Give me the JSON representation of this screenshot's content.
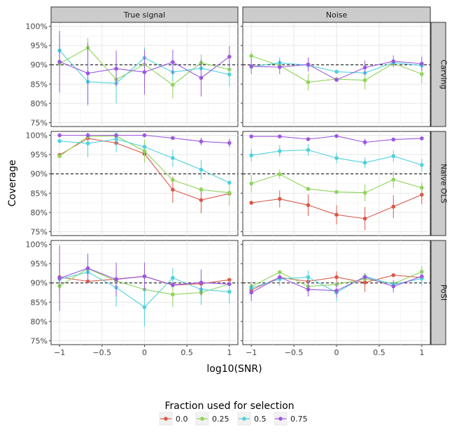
{
  "chart_data": {
    "type": "line",
    "xlabel": "log10(SNR)",
    "ylabel": "Coverage",
    "x": [
      -1,
      -0.667,
      -0.333,
      0,
      0.333,
      0.667,
      1
    ],
    "x_ticks": [
      -1,
      -0.5,
      0,
      0.5,
      1
    ],
    "x_tick_labels": [
      "−1",
      "−0.5",
      "0",
      "0.5",
      "1"
    ],
    "xlim": [
      -1.1,
      1.1
    ],
    "ylim": [
      0.74,
      1.01
    ],
    "y_ticks": [
      0.75,
      0.8,
      0.85,
      0.9,
      0.95,
      1.0
    ],
    "y_tick_labels": [
      "75%",
      "80%",
      "85%",
      "90%",
      "95%",
      "100%"
    ],
    "reference_line": 0.9,
    "grid": true,
    "columns": [
      "True signal",
      "Noise"
    ],
    "rows": [
      "Carving",
      "Naive OLS",
      "PoSI"
    ],
    "legend": {
      "title": "Fraction used for selection",
      "position": "bottom",
      "entries": [
        "0.0",
        "0.25",
        "0.5",
        "0.75"
      ]
    },
    "colors": {
      "0.0": "#d9594c",
      "0.25": "#8fd45a",
      "0.5": "#4fd1dc",
      "0.75": "#9b58e0"
    },
    "panels": [
      {
        "row": "Carving",
        "col": "True signal",
        "series": [
          {
            "name": "0.25",
            "y": [
              0.903,
              0.944,
              0.862,
              0.901,
              0.848,
              0.905,
              0.888
            ],
            "err": [
              0.0,
              0.026,
              0.0,
              0.0,
              0.035,
              0.022,
              0.0
            ]
          },
          {
            "name": "0.5",
            "y": [
              0.937,
              0.856,
              0.852,
              0.918,
              0.881,
              0.891,
              0.875
            ],
            "err": [
              0.036,
              0.062,
              0.052,
              0.027,
              0.022,
              0.021,
              0.031
            ]
          },
          {
            "name": "0.75",
            "y": [
              0.908,
              0.878,
              0.89,
              0.881,
              0.907,
              0.866,
              0.921
            ],
            "err": [
              0.08,
              0.08,
              0.047,
              0.058,
              0.032,
              0.048,
              0.027
            ]
          }
        ]
      },
      {
        "row": "Carving",
        "col": "Noise",
        "series": [
          {
            "name": "0.25",
            "y": [
              0.923,
              0.898,
              0.855,
              0.863,
              0.86,
              0.904,
              0.876
            ],
            "err": [
              0.01,
              0.0,
              0.022,
              0.0,
              0.024,
              0.0,
              0.024
            ]
          },
          {
            "name": "0.5",
            "y": [
              0.895,
              0.905,
              0.899,
              0.882,
              0.879,
              0.906,
              0.898
            ],
            "err": [
              0.0,
              0.015,
              0.0,
              0.0,
              0.0,
              0.0,
              0.0
            ]
          },
          {
            "name": "0.75",
            "y": [
              0.896,
              0.894,
              0.901,
              0.861,
              0.893,
              0.909,
              0.903
            ],
            "err": [
              0.02,
              0.018,
              0.018,
              0.0,
              0.018,
              0.015,
              0.018
            ]
          }
        ]
      },
      {
        "row": "Naive OLS",
        "col": "True signal",
        "series": [
          {
            "name": "0.0",
            "y": [
              0.949,
              0.992,
              0.98,
              0.952,
              0.859,
              0.832,
              0.849
            ],
            "err": [
              0.0,
              0.0,
              0.0,
              0.0,
              0.034,
              0.034,
              0.0
            ]
          },
          {
            "name": "0.25",
            "y": [
              0.946,
              0.997,
              0.998,
              0.959,
              0.884,
              0.859,
              0.851
            ],
            "err": [
              0.0,
              0.0,
              0.0,
              0.03,
              0.0,
              0.0,
              0.033
            ]
          },
          {
            "name": "0.5",
            "y": [
              0.985,
              0.979,
              0.99,
              0.97,
              0.941,
              0.911,
              0.877
            ],
            "err": [
              0.0,
              0.036,
              0.034,
              0.0,
              0.022,
              0.025,
              0.0
            ]
          },
          {
            "name": "0.75",
            "y": [
              1.0,
              1.0,
              1.0,
              1.0,
              0.993,
              0.984,
              0.98
            ],
            "err": [
              0.0,
              0.0,
              0.0,
              0.0,
              0.0,
              0.01,
              0.011
            ]
          }
        ]
      },
      {
        "row": "Naive OLS",
        "col": "Noise",
        "series": [
          {
            "name": "0.0",
            "y": [
              0.825,
              0.835,
              0.819,
              0.794,
              0.784,
              0.815,
              0.846
            ],
            "err": [
              0.0,
              0.022,
              0.028,
              0.025,
              0.03,
              0.03,
              0.025
            ]
          },
          {
            "name": "0.25",
            "y": [
              0.875,
              0.899,
              0.861,
              0.853,
              0.851,
              0.885,
              0.864
            ],
            "err": [
              0.022,
              0.012,
              0.0,
              0.0,
              0.022,
              0.022,
              0.013
            ]
          },
          {
            "name": "0.5",
            "y": [
              0.948,
              0.959,
              0.962,
              0.941,
              0.929,
              0.946,
              0.923
            ],
            "err": [
              0.017,
              0.015,
              0.015,
              0.014,
              0.014,
              0.015,
              0.016
            ]
          },
          {
            "name": "0.75",
            "y": [
              0.997,
              0.997,
              0.99,
              0.998,
              0.982,
              0.989,
              0.992
            ],
            "err": [
              0.0,
              0.0,
              0.0,
              0.0,
              0.009,
              0.0,
              0.0
            ]
          }
        ]
      },
      {
        "row": "PoSI",
        "col": "True signal",
        "series": [
          {
            "name": "0.0",
            "y": [
              0.915,
              0.904,
              0.91,
              0.917,
              0.894,
              0.898,
              0.908
            ],
            "err": [
              0.035,
              0.0,
              0.0,
              0.0,
              0.0,
              0.0,
              0.0
            ]
          },
          {
            "name": "0.25",
            "y": [
              0.892,
              0.937,
              0.905,
              0.883,
              0.87,
              0.875,
              0.897
            ],
            "err": [
              0.0,
              0.0,
              0.0,
              0.0,
              0.033,
              0.0,
              0.0
            ]
          },
          {
            "name": "0.5",
            "y": [
              0.91,
              0.928,
              0.888,
              0.837,
              0.913,
              0.883,
              0.877
            ],
            "err": [
              0.0,
              0.03,
              0.05,
              0.05,
              0.026,
              0.04,
              0.03
            ]
          },
          {
            "name": "0.75",
            "y": [
              0.912,
              0.938,
              0.909,
              0.917,
              0.895,
              0.901,
              0.897
            ],
            "err": [
              0.085,
              0.038,
              0.044,
              0.036,
              0.0,
              0.034,
              0.0
            ]
          }
        ]
      },
      {
        "row": "PoSI",
        "col": "Noise",
        "series": [
          {
            "name": "0.0",
            "y": [
              0.882,
              0.914,
              0.904,
              0.915,
              0.901,
              0.92,
              0.914
            ],
            "err": [
              0.0,
              0.0,
              0.0,
              0.015,
              0.024,
              0.0,
              0.0
            ]
          },
          {
            "name": "0.25",
            "y": [
              0.891,
              0.928,
              0.891,
              0.896,
              0.91,
              0.898,
              0.929
            ],
            "err": [
              0.014,
              0.0,
              0.0,
              0.0,
              0.0,
              0.0,
              0.015
            ]
          },
          {
            "name": "0.5",
            "y": [
              0.887,
              0.91,
              0.915,
              0.875,
              0.917,
              0.896,
              0.911
            ],
            "err": [
              0.0,
              0.018,
              0.018,
              0.023,
              0.0,
              0.0,
              0.018
            ]
          },
          {
            "name": "0.75",
            "y": [
              0.875,
              0.915,
              0.883,
              0.88,
              0.915,
              0.891,
              0.917
            ],
            "err": [
              0.022,
              0.0,
              0.018,
              0.018,
              0.0,
              0.016,
              0.0
            ]
          }
        ]
      }
    ]
  }
}
